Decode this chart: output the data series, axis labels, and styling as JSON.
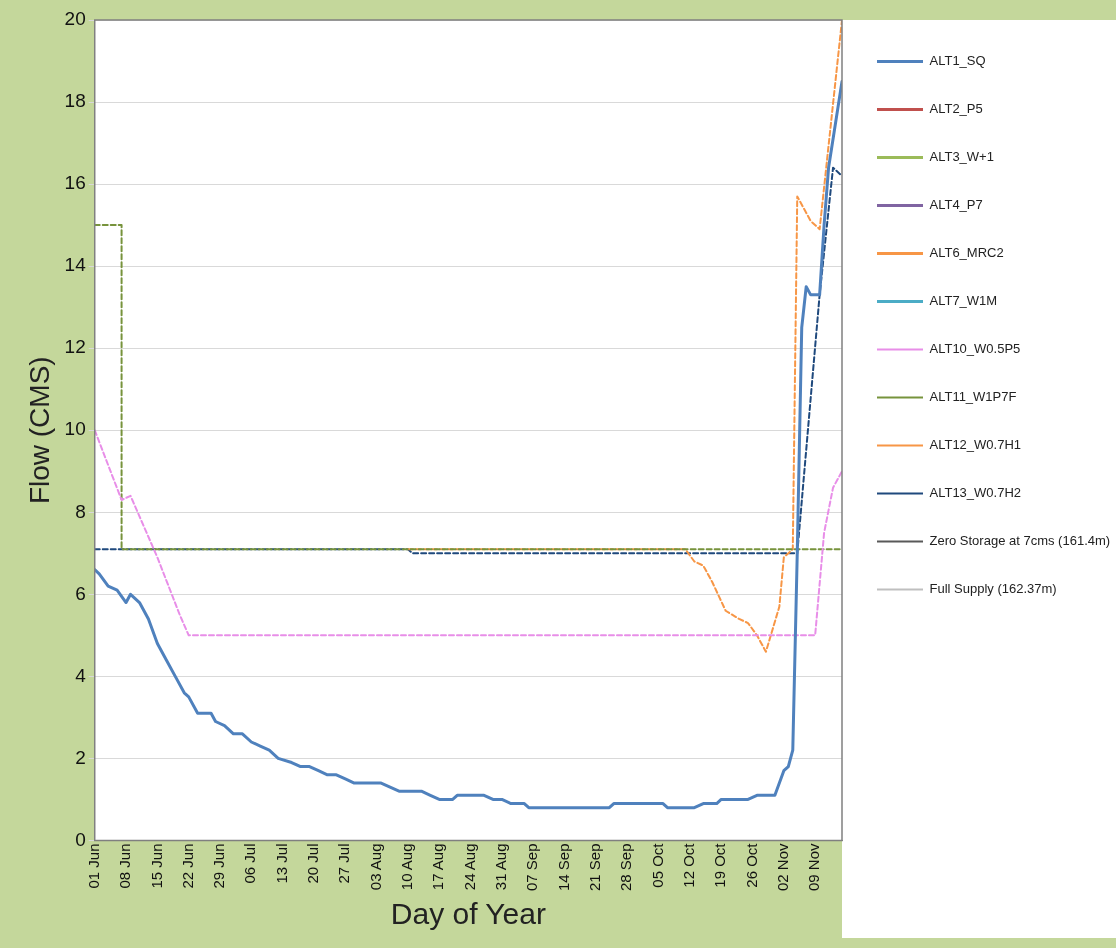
{
  "chart_data": {
    "type": "line",
    "xlabel": "Day of Year",
    "ylabel": "Flow (CMS)",
    "legend": "right",
    "grid": "y",
    "xlim": [
      "--06-01",
      "--11-15"
    ],
    "xticks": [
      {
        "value": "--06-01",
        "label": "01 Jun"
      },
      {
        "value": "--06-08",
        "label": "08 Jun"
      },
      {
        "value": "--06-15",
        "label": "15 Jun"
      },
      {
        "value": "--06-22",
        "label": "22 Jun"
      },
      {
        "value": "--06-29",
        "label": "29 Jun"
      },
      {
        "value": "--07-06",
        "label": "06 Jul"
      },
      {
        "value": "--07-13",
        "label": "13 Jul"
      },
      {
        "value": "--07-20",
        "label": "20 Jul"
      },
      {
        "value": "--07-27",
        "label": "27 Jul"
      },
      {
        "value": "--08-03",
        "label": "03 Aug"
      },
      {
        "value": "--08-10",
        "label": "10 Aug"
      },
      {
        "value": "--08-17",
        "label": "17 Aug"
      },
      {
        "value": "--08-24",
        "label": "24 Aug"
      },
      {
        "value": "--08-31",
        "label": "31 Aug"
      },
      {
        "value": "--09-07",
        "label": "07 Sep"
      },
      {
        "value": "--09-14",
        "label": "14 Sep"
      },
      {
        "value": "--09-21",
        "label": "21 Sep"
      },
      {
        "value": "--09-28",
        "label": "28 Sep"
      },
      {
        "value": "--10-05",
        "label": "05 Oct"
      },
      {
        "value": "--10-12",
        "label": "12 Oct"
      },
      {
        "value": "--10-19",
        "label": "19 Oct"
      },
      {
        "value": "--10-26",
        "label": "26 Oct"
      },
      {
        "value": "--11-02",
        "label": "02 Nov"
      },
      {
        "value": "--11-09",
        "label": "09 Nov"
      }
    ],
    "ylim": [
      0,
      20
    ],
    "yticks": [
      0,
      2,
      4,
      6,
      8,
      10,
      12,
      14,
      16,
      18,
      20
    ],
    "series": [
      {
        "name": "ALT1_SQ",
        "color": "#4f81bd",
        "line_style": "solid",
        "x": [
          "--06-01",
          "--06-02",
          "--06-04",
          "--06-06",
          "--06-08",
          "--06-09",
          "--06-11",
          "--06-13",
          "--06-15",
          "--06-17",
          "--06-19",
          "--06-21",
          "--06-22",
          "--06-24",
          "--06-27",
          "--06-28",
          "--06-30",
          "--07-02",
          "--07-04",
          "--07-06",
          "--07-08",
          "--07-10",
          "--07-12",
          "--07-15",
          "--07-17",
          "--07-19",
          "--07-21",
          "--07-23",
          "--07-25",
          "--07-27",
          "--07-29",
          "--08-04",
          "--08-06",
          "--08-08",
          "--08-13",
          "--08-15",
          "--08-17",
          "--08-20",
          "--08-21",
          "--08-27",
          "--08-29",
          "--08-31",
          "--09-02",
          "--09-05",
          "--09-06",
          "--09-24",
          "--09-25",
          "--10-06",
          "--10-07",
          "--10-13",
          "--10-15",
          "--10-18",
          "--10-19",
          "--10-25",
          "--10-27",
          "--10-31",
          "--11-02",
          "--11-03",
          "--11-04",
          "--11-05",
          "--11-06",
          "--11-07",
          "--11-08",
          "--11-10",
          "--11-11",
          "--11-12",
          "--11-15"
        ],
        "values": [
          6.6,
          6.5,
          6.2,
          6.1,
          5.8,
          6.0,
          5.8,
          5.4,
          4.8,
          4.4,
          4.0,
          3.6,
          3.5,
          3.1,
          3.1,
          2.9,
          2.8,
          2.6,
          2.6,
          2.4,
          2.3,
          2.2,
          2.0,
          1.9,
          1.8,
          1.8,
          1.7,
          1.6,
          1.6,
          1.5,
          1.4,
          1.4,
          1.3,
          1.2,
          1.2,
          1.1,
          1.0,
          1.0,
          1.1,
          1.1,
          1.0,
          1.0,
          0.9,
          0.9,
          0.8,
          0.8,
          0.9,
          0.9,
          0.8,
          0.8,
          0.9,
          0.9,
          1.0,
          1.0,
          1.1,
          1.1,
          1.7,
          1.8,
          2.2,
          7.0,
          12.5,
          13.5,
          13.3,
          13.3,
          15.0,
          16.4,
          18.5
        ]
      },
      {
        "name": "ALT2_P5",
        "color": "#c0504d",
        "line_style": "solid"
      },
      {
        "name": "ALT3_W+1",
        "color": "#9bbb59",
        "line_style": "solid"
      },
      {
        "name": "ALT4_P7",
        "color": "#8064a2",
        "line_style": "solid"
      },
      {
        "name": "ALT6_MRC2",
        "color": "#f79646",
        "line_style": "solid"
      },
      {
        "name": "ALT7_W1M",
        "color": "#4bacc6",
        "line_style": "solid"
      },
      {
        "name": "ALT10_W0.5P5",
        "color": "#e88ee8",
        "line_style": "dashed",
        "x": [
          "--06-01",
          "--06-07",
          "--06-09",
          "--06-15",
          "--06-20",
          "--06-22",
          "--11-09",
          "--11-11",
          "--11-13",
          "--11-15"
        ],
        "values": [
          10.0,
          8.3,
          8.4,
          6.9,
          5.5,
          5.0,
          5.0,
          7.5,
          8.6,
          9.0
        ]
      },
      {
        "name": "ALT11_W1P7F",
        "color": "#77933c",
        "line_style": "dashed",
        "x": [
          "--06-01",
          "--06-07",
          "--06-07",
          "--11-15"
        ],
        "values": [
          15.0,
          15.0,
          7.1,
          7.1
        ]
      },
      {
        "name": "ALT12_W0.7H1",
        "color": "#f79646",
        "line_style": "dashed",
        "x": [
          "--08-10",
          "--10-11",
          "--10-13",
          "--10-15",
          "--10-17",
          "--10-20",
          "--10-23",
          "--10-25",
          "--10-27",
          "--10-29",
          "--11-01",
          "--11-02",
          "--11-04",
          "--11-05",
          "--11-08",
          "--11-10",
          "--11-15"
        ],
        "values": [
          7.1,
          7.1,
          6.8,
          6.7,
          6.3,
          5.6,
          5.4,
          5.3,
          5.0,
          4.6,
          5.7,
          6.9,
          7.1,
          15.7,
          15.1,
          14.9,
          20.0
        ]
      },
      {
        "name": "ALT13_W0.7H2",
        "color": "#1f497d",
        "line_style": "dashed",
        "x": [
          "--06-01",
          "--08-10",
          "--08-11",
          "--11-05",
          "--11-10",
          "--11-13",
          "--11-15"
        ],
        "values": [
          7.1,
          7.1,
          7.0,
          7.0,
          13.3,
          16.4,
          16.2
        ]
      },
      {
        "name": "Zero Storage at 7cms (161.4m)",
        "color": "#595959",
        "line_style": "dashed"
      },
      {
        "name": "Full Supply (162.37m)",
        "color": "#bfbfbf",
        "line_style": "dotted"
      }
    ]
  }
}
